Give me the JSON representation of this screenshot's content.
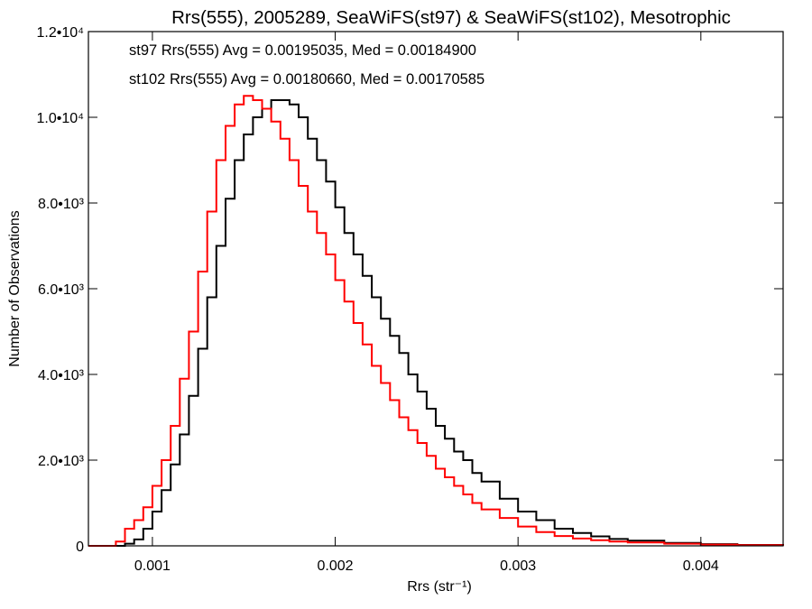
{
  "chart_data": {
    "type": "line",
    "title": "Rrs(555), 2005289, SeaWiFS(st97) & SeaWiFS(st102), Mesotrophic",
    "xlabel": "Rrs (str⁻¹)",
    "ylabel": "Number of Observations",
    "xlim": [
      0.00065,
      0.00445
    ],
    "ylim": [
      0,
      12000
    ],
    "x_ticks": [
      0.001,
      0.002,
      0.003,
      0.004
    ],
    "x_tick_labels": [
      "0.001",
      "0.002",
      "0.003",
      "0.004"
    ],
    "y_ticks": [
      0,
      2000,
      4000,
      6000,
      8000,
      10000,
      12000
    ],
    "y_tick_labels": [
      "0",
      "2.0•10³",
      "4.0•10³",
      "6.0•10³",
      "8.0•10³",
      "1.0•10⁴",
      "1.2•10⁴"
    ],
    "grid": false,
    "step_style": "histogram-steps",
    "annotations": [
      {
        "text": "st97 Rrs(555) Avg = 0.00195035, Med = 0.00184900",
        "color": "#000000"
      },
      {
        "text": "st102 Rrs(555) Avg = 0.00180660, Med = 0.00170585",
        "color": "#ff0000"
      }
    ],
    "series": [
      {
        "color": "#000000",
        "x": [
          0.00065,
          0.0008,
          0.00085,
          0.0009,
          0.00095,
          0.001,
          0.00105,
          0.0011,
          0.00115,
          0.0012,
          0.00125,
          0.0013,
          0.00135,
          0.0014,
          0.00145,
          0.0015,
          0.00155,
          0.0016,
          0.00165,
          0.0017,
          0.00175,
          0.0018,
          0.00185,
          0.0019,
          0.00195,
          0.002,
          0.00205,
          0.0021,
          0.00215,
          0.0022,
          0.00225,
          0.0023,
          0.00235,
          0.0024,
          0.00245,
          0.0025,
          0.00255,
          0.0026,
          0.00265,
          0.0027,
          0.00275,
          0.0028,
          0.0029,
          0.003,
          0.0031,
          0.0032,
          0.0033,
          0.0034,
          0.0035,
          0.0036,
          0.0038,
          0.004,
          0.0042,
          0.00445
        ],
        "y": [
          0,
          0,
          50,
          150,
          400,
          800,
          1300,
          1900,
          2600,
          3500,
          4600,
          5800,
          7000,
          8100,
          9000,
          9600,
          10000,
          10200,
          10400,
          10400,
          10300,
          10000,
          9500,
          9000,
          8500,
          7900,
          7300,
          6800,
          6300,
          5800,
          5300,
          4900,
          4500,
          4000,
          3600,
          3200,
          2800,
          2500,
          2200,
          2000,
          1700,
          1500,
          1100,
          800,
          600,
          400,
          300,
          220,
          160,
          120,
          70,
          40,
          20,
          5
        ]
      },
      {
        "color": "#ff0000",
        "x": [
          0.00065,
          0.00078,
          0.0008,
          0.00085,
          0.0009,
          0.00095,
          0.001,
          0.00105,
          0.0011,
          0.00115,
          0.0012,
          0.00125,
          0.0013,
          0.00135,
          0.0014,
          0.00145,
          0.0015,
          0.00155,
          0.0016,
          0.00165,
          0.0017,
          0.00175,
          0.0018,
          0.00185,
          0.0019,
          0.00195,
          0.002,
          0.00205,
          0.0021,
          0.00215,
          0.0022,
          0.00225,
          0.0023,
          0.00235,
          0.0024,
          0.00245,
          0.0025,
          0.00255,
          0.0026,
          0.00265,
          0.0027,
          0.00275,
          0.0028,
          0.0029,
          0.003,
          0.0031,
          0.0032,
          0.0033,
          0.0034,
          0.0035,
          0.0036,
          0.0038,
          0.004,
          0.0042,
          0.00445
        ],
        "y": [
          0,
          0,
          100,
          400,
          600,
          900,
          1400,
          2000,
          2800,
          3900,
          5000,
          6400,
          7800,
          9000,
          9800,
          10300,
          10500,
          10400,
          10200,
          9900,
          9500,
          9000,
          8400,
          7800,
          7300,
          6800,
          6200,
          5700,
          5200,
          4700,
          4200,
          3800,
          3400,
          3000,
          2700,
          2400,
          2100,
          1800,
          1600,
          1400,
          1200,
          1000,
          850,
          650,
          450,
          320,
          230,
          170,
          130,
          100,
          80,
          50,
          30,
          15,
          5
        ]
      }
    ]
  }
}
